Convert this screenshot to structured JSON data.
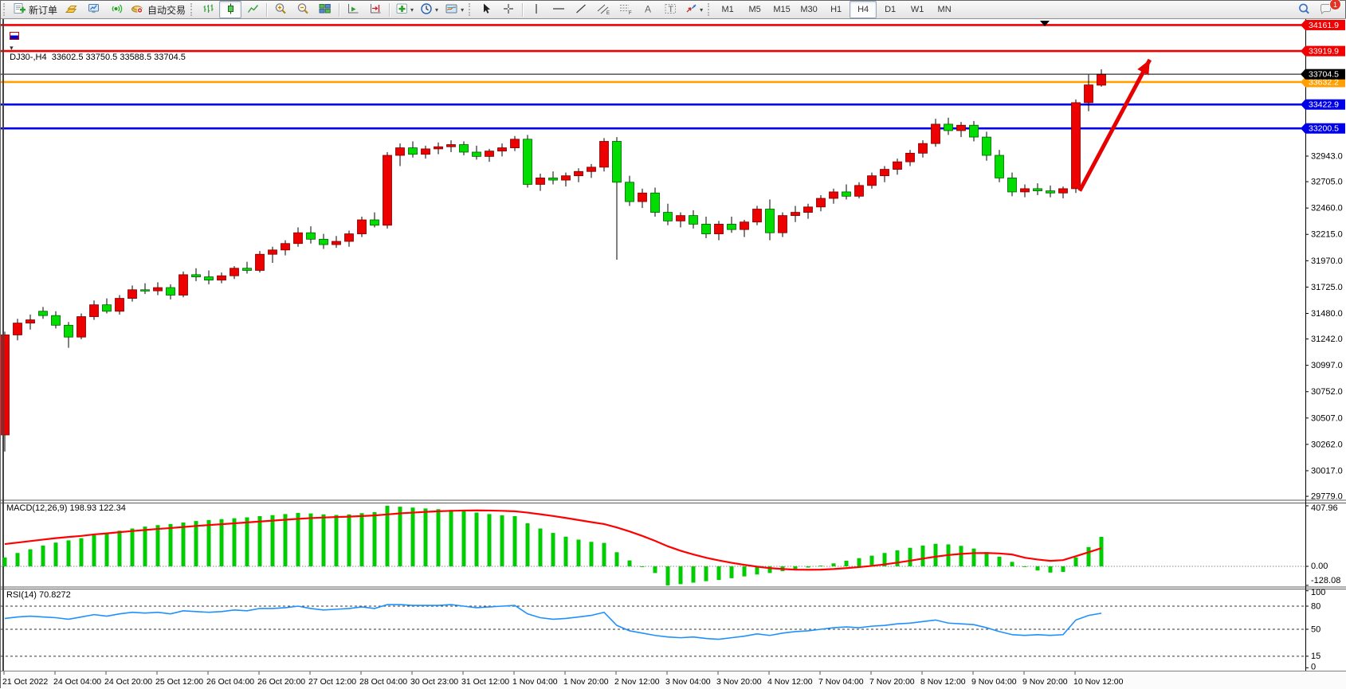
{
  "toolbar": {
    "new_order_label": "新订单",
    "autotrade_label": "自动交易",
    "active_timeframe": "H4",
    "timeframes": [
      {
        "label": "M1"
      },
      {
        "label": "M5"
      },
      {
        "label": "M15"
      },
      {
        "label": "M30"
      },
      {
        "label": "H1"
      },
      {
        "label": "H4"
      },
      {
        "label": "D1"
      },
      {
        "label": "W1"
      },
      {
        "label": "MN"
      }
    ],
    "notification_count": "1"
  },
  "icons": {
    "dropdown_caret": "▾",
    "collapse_caret": "▾"
  },
  "chart": {
    "header": "DJ30-,H4  33602.5 33750.5 33588.5 33704.5",
    "macd_label": "MACD(12,26,9) 198.93 122.34",
    "rsi_label": "RSI(14) 70.8272"
  },
  "chart_data": {
    "type": "candlestick",
    "symbol": "DJ30-",
    "timeframe": "H4",
    "current_ohlc": {
      "open": 33602.5,
      "high": 33750.5,
      "low": 33588.5,
      "close": 33704.5
    },
    "bull_color": "#ee0000",
    "bear_color": "#00dd00",
    "levels": [
      {
        "value": 34161.9,
        "color": "#f00000"
      },
      {
        "value": 33919.9,
        "color": "#f00000"
      },
      {
        "value": 33632.2,
        "color": "#ffa000"
      },
      {
        "value": 33422.9,
        "color": "#0000e8"
      },
      {
        "value": 33200.5,
        "color": "#0000e8"
      }
    ],
    "current_price": {
      "value": 33704.5,
      "color": "#000000"
    },
    "y_ticks": [
      32943.0,
      32705.0,
      32460.0,
      32215.0,
      31970.0,
      31725.0,
      31480.0,
      31242.0,
      30997.0,
      30752.0,
      30507.0,
      30262.0,
      30017.0,
      29779.0
    ],
    "x_labels": [
      "21 Oct 2022",
      "24 Oct 04:00",
      "24 Oct 20:00",
      "25 Oct 12:00",
      "26 Oct 04:00",
      "26 Oct 20:00",
      "27 Oct 12:00",
      "28 Oct 04:00",
      "30 Oct 23:00",
      "31 Oct 12:00",
      "1 Nov 04:00",
      "1 Nov 20:00",
      "2 Nov 12:00",
      "3 Nov 04:00",
      "3 Nov 20:00",
      "4 Nov 12:00",
      "7 Nov 04:00",
      "7 Nov 20:00",
      "8 Nov 12:00",
      "9 Nov 04:00",
      "9 Nov 20:00",
      "10 Nov 12:00"
    ],
    "candles": [
      [
        30350,
        31310,
        30195,
        31280
      ],
      [
        31280,
        31430,
        31230,
        31390
      ],
      [
        31390,
        31470,
        31330,
        31420
      ],
      [
        31500,
        31540,
        31430,
        31460
      ],
      [
        31460,
        31500,
        31340,
        31370
      ],
      [
        31370,
        31400,
        31160,
        31260
      ],
      [
        31260,
        31480,
        31240,
        31450
      ],
      [
        31450,
        31600,
        31420,
        31560
      ],
      [
        31560,
        31620,
        31480,
        31500
      ],
      [
        31500,
        31650,
        31470,
        31620
      ],
      [
        31620,
        31740,
        31590,
        31700
      ],
      [
        31700,
        31760,
        31660,
        31690
      ],
      [
        31690,
        31770,
        31650,
        31720
      ],
      [
        31720,
        31750,
        31610,
        31650
      ],
      [
        31650,
        31870,
        31630,
        31840
      ],
      [
        31840,
        31900,
        31780,
        31820
      ],
      [
        31820,
        31880,
        31750,
        31790
      ],
      [
        31790,
        31860,
        31760,
        31830
      ],
      [
        31830,
        31920,
        31800,
        31900
      ],
      [
        31900,
        31960,
        31850,
        31880
      ],
      [
        31880,
        32060,
        31860,
        32030
      ],
      [
        32030,
        32100,
        31950,
        32070
      ],
      [
        32070,
        32160,
        32020,
        32130
      ],
      [
        32130,
        32280,
        32100,
        32230
      ],
      [
        32230,
        32290,
        32130,
        32170
      ],
      [
        32170,
        32220,
        32080,
        32120
      ],
      [
        32120,
        32200,
        32090,
        32150
      ],
      [
        32150,
        32250,
        32100,
        32220
      ],
      [
        32220,
        32380,
        32190,
        32350
      ],
      [
        32350,
        32420,
        32280,
        32300
      ],
      [
        32300,
        32980,
        32270,
        32950
      ],
      [
        32950,
        33060,
        32850,
        33020
      ],
      [
        33020,
        33080,
        32930,
        32960
      ],
      [
        32960,
        33040,
        32920,
        33010
      ],
      [
        33010,
        33070,
        32960,
        33030
      ],
      [
        33030,
        33090,
        32980,
        33050
      ],
      [
        33050,
        33080,
        32950,
        32980
      ],
      [
        32980,
        33040,
        32910,
        32940
      ],
      [
        32940,
        33010,
        32890,
        32990
      ],
      [
        32990,
        33060,
        32940,
        33020
      ],
      [
        33020,
        33130,
        32990,
        33100
      ],
      [
        33100,
        33140,
        32650,
        32680
      ],
      [
        32680,
        32780,
        32620,
        32740
      ],
      [
        32740,
        32800,
        32680,
        32720
      ],
      [
        32720,
        32790,
        32660,
        32760
      ],
      [
        32760,
        32830,
        32700,
        32800
      ],
      [
        32800,
        32870,
        32740,
        32840
      ],
      [
        32840,
        33110,
        32800,
        33080
      ],
      [
        33080,
        33120,
        31980,
        32700
      ],
      [
        32700,
        32760,
        32480,
        32520
      ],
      [
        32520,
        32640,
        32460,
        32600
      ],
      [
        32600,
        32650,
        32380,
        32420
      ],
      [
        32420,
        32500,
        32300,
        32340
      ],
      [
        32340,
        32420,
        32280,
        32390
      ],
      [
        32390,
        32440,
        32270,
        32310
      ],
      [
        32310,
        32380,
        32180,
        32220
      ],
      [
        32220,
        32340,
        32160,
        32310
      ],
      [
        32310,
        32380,
        32230,
        32260
      ],
      [
        32260,
        32350,
        32190,
        32330
      ],
      [
        32330,
        32480,
        32300,
        32450
      ],
      [
        32450,
        32540,
        32160,
        32230
      ],
      [
        32230,
        32420,
        32190,
        32390
      ],
      [
        32390,
        32480,
        32330,
        32420
      ],
      [
        32420,
        32500,
        32360,
        32470
      ],
      [
        32470,
        32580,
        32430,
        32550
      ],
      [
        32550,
        32640,
        32500,
        32610
      ],
      [
        32610,
        32680,
        32540,
        32570
      ],
      [
        32570,
        32700,
        32550,
        32670
      ],
      [
        32670,
        32790,
        32640,
        32760
      ],
      [
        32760,
        32850,
        32700,
        32820
      ],
      [
        32820,
        32920,
        32770,
        32890
      ],
      [
        32890,
        33000,
        32850,
        32970
      ],
      [
        32970,
        33090,
        32930,
        33060
      ],
      [
        33060,
        33290,
        33030,
        33240
      ],
      [
        33240,
        33300,
        33140,
        33180
      ],
      [
        33180,
        33260,
        33120,
        33230
      ],
      [
        33230,
        33270,
        33080,
        33120
      ],
      [
        33120,
        33170,
        32900,
        32950
      ],
      [
        32950,
        33000,
        32700,
        32740
      ],
      [
        32740,
        32790,
        32570,
        32610
      ],
      [
        32610,
        32680,
        32560,
        32640
      ],
      [
        32640,
        32690,
        32580,
        32620
      ],
      [
        32620,
        32670,
        32560,
        32600
      ],
      [
        32600,
        32660,
        32550,
        32640
      ],
      [
        32640,
        33470,
        32600,
        33440
      ],
      [
        33440,
        33700,
        33360,
        33605
      ],
      [
        33602.5,
        33750.5,
        33588.5,
        33704.5
      ]
    ],
    "macd": {
      "params": "12,26,9",
      "main": 198.93,
      "signal_value": 122.34,
      "axis": [
        "407.96",
        "0.00",
        "-128.08"
      ],
      "hist_color": "#00cc00",
      "signal_color": "#ff0000",
      "histogram": [
        60,
        90,
        115,
        140,
        160,
        175,
        190,
        210,
        225,
        240,
        255,
        268,
        278,
        285,
        295,
        305,
        312,
        318,
        324,
        330,
        338,
        345,
        352,
        360,
        356,
        350,
        346,
        350,
        358,
        365,
        407.96,
        402,
        396,
        390,
        385,
        380,
        372,
        362,
        352,
        344,
        338,
        290,
        255,
        225,
        200,
        180,
        165,
        158,
        95,
        40,
        -5,
        -45,
        -128.08,
        -120,
        -110,
        -100,
        -92,
        -80,
        -68,
        -55,
        -45,
        -32,
        -20,
        -8,
        5,
        20,
        38,
        55,
        72,
        90,
        108,
        125,
        140,
        152,
        148,
        138,
        120,
        95,
        65,
        30,
        -5,
        -28,
        -42,
        -38,
        60,
        130,
        198.93
      ],
      "signal": [
        150,
        160,
        170,
        180,
        190,
        198,
        205,
        215,
        222,
        230,
        238,
        245,
        252,
        258,
        265,
        272,
        278,
        284,
        290,
        296,
        302,
        308,
        314,
        320,
        325,
        329,
        332,
        335,
        339,
        343,
        350,
        357,
        362,
        367,
        371,
        374,
        376,
        377,
        376,
        374,
        371,
        362,
        351,
        339,
        326,
        312,
        298,
        285,
        262,
        235,
        205,
        172,
        135,
        105,
        80,
        58,
        40,
        24,
        10,
        -2,
        -12,
        -18,
        -22,
        -23,
        -22,
        -18,
        -12,
        -5,
        3,
        13,
        25,
        38,
        52,
        65,
        76,
        84,
        89,
        90,
        87,
        80,
        58,
        46,
        37,
        42,
        68,
        95,
        122.34
      ]
    },
    "rsi": {
      "period": 14,
      "value": 70.8272,
      "axis": [
        "100",
        "80",
        "50",
        "15",
        "0"
      ],
      "dashed_levels": [
        80,
        50,
        15
      ],
      "color": "#1e90ff",
      "values": [
        64,
        66,
        67,
        66,
        65,
        63,
        66,
        69,
        67,
        70,
        72,
        71,
        72,
        70,
        74,
        73,
        72,
        73,
        75,
        74,
        77,
        77,
        78,
        80,
        77,
        75,
        76,
        77,
        79,
        77,
        82,
        82,
        81,
        81,
        81,
        82,
        80,
        78,
        79,
        80,
        81,
        70,
        65,
        63,
        64,
        66,
        68,
        72,
        55,
        48,
        45,
        42,
        40,
        39,
        40,
        38,
        37,
        39,
        41,
        44,
        42,
        45,
        47,
        48,
        50,
        52,
        53,
        52,
        54,
        55,
        57,
        58,
        60,
        62,
        58,
        57,
        56,
        52,
        47,
        43,
        42,
        43,
        42,
        43,
        62,
        68,
        70.83
      ],
      "current": 70.8272
    },
    "annotation_arrow": {
      "x1_index": 84.3,
      "y1_price": 32620,
      "x2_index": 89.8,
      "y2_price": 33840,
      "color": "#e60000"
    }
  }
}
